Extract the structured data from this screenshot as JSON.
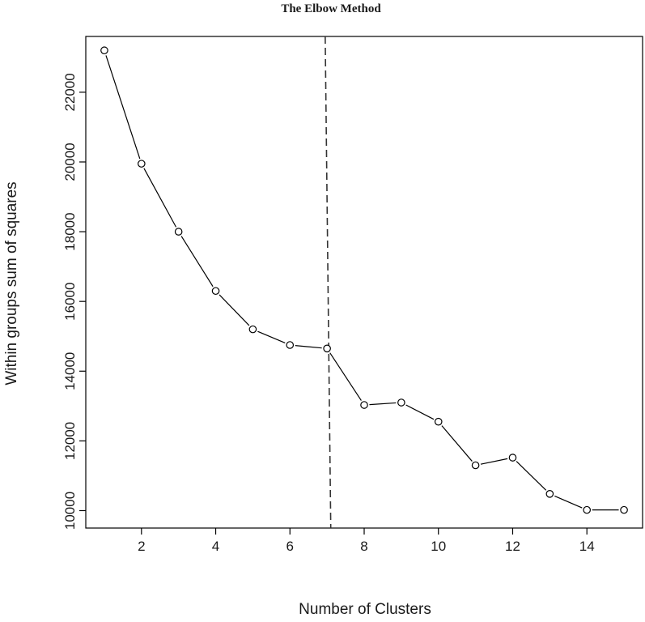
{
  "chart_data": {
    "type": "line",
    "title": "The Elbow Method",
    "xlabel": "Number of Clusters",
    "ylabel": "Within groups sum of squares",
    "xlim": [
      0.5,
      15.5
    ],
    "ylim": [
      9500,
      23600
    ],
    "x_ticks": [
      "2",
      "4",
      "6",
      "8",
      "10",
      "12",
      "14"
    ],
    "y_ticks": [
      "10000",
      "12000",
      "14000",
      "16000",
      "18000",
      "20000",
      "22000"
    ],
    "grid": false,
    "legend": "none",
    "marker": "open-circle",
    "line_color": "#000000",
    "series": [
      {
        "x": [
          1,
          2,
          3,
          4,
          5,
          6,
          7,
          8,
          9,
          10,
          11,
          12,
          13,
          14,
          15
        ],
        "values": [
          23200,
          19950,
          18000,
          16300,
          15200,
          14750,
          14650,
          13030,
          13100,
          12550,
          11300,
          11520,
          10480,
          10020,
          10020
        ]
      }
    ],
    "reference_line": {
      "orientation": "vertical",
      "style": "dashed",
      "x_top": 6.95,
      "x_bottom": 7.1
    }
  }
}
